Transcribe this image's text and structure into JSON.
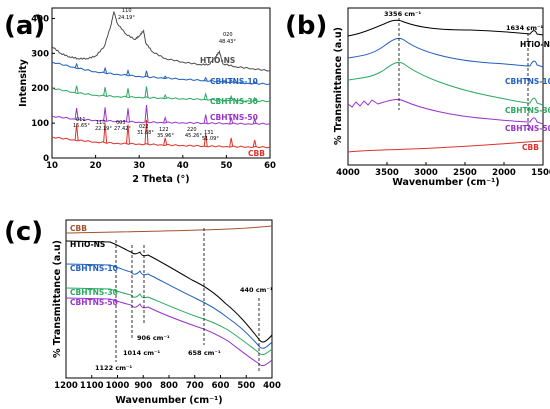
{
  "chart_data": [
    {
      "panel": "(a)",
      "type": "line",
      "xlabel": "2 Theta (°)",
      "ylabel": "Intensity",
      "xlim": [
        10,
        60
      ],
      "ylim": [
        0,
        430
      ],
      "xticks": [
        "10",
        "20",
        "30",
        "40",
        "50",
        "60"
      ],
      "yticks": [
        "0",
        "100",
        "200",
        "300",
        "400"
      ],
      "series": [
        {
          "name": "HTiO-NS",
          "color": "#4d4d4d",
          "x": [
            10,
            12,
            14,
            16,
            18,
            20,
            22,
            23.5,
            24.2,
            25,
            27,
            29,
            30,
            31,
            31.5,
            33,
            36,
            40,
            44,
            46,
            47.5,
            48.4,
            49.2,
            52,
            56,
            60
          ],
          "y": [
            320,
            300,
            290,
            285,
            285,
            292,
            320,
            380,
            420,
            385,
            355,
            340,
            350,
            365,
            330,
            305,
            285,
            275,
            268,
            268,
            290,
            305,
            270,
            262,
            256,
            250
          ]
        },
        {
          "name": "CBHTNS-10",
          "color": "#1f5fbf",
          "x": [
            10,
            15,
            20,
            25,
            30,
            35,
            40,
            45,
            50,
            55,
            60
          ],
          "y": [
            275,
            260,
            247,
            240,
            234,
            230,
            226,
            222,
            218,
            214,
            212
          ]
        },
        {
          "name": "CBHTNS-30",
          "color": "#2aa860",
          "x": [
            10,
            15,
            20,
            25,
            30,
            35,
            40,
            45,
            50,
            55,
            60
          ],
          "y": [
            200,
            188,
            180,
            176,
            174,
            172,
            170,
            168,
            166,
            164,
            163
          ]
        },
        {
          "name": "CBHTNS-50",
          "color": "#9933cc",
          "x": [
            10,
            15,
            20,
            25,
            30,
            35,
            40,
            45,
            50,
            55,
            60
          ],
          "y": [
            120,
            112,
            108,
            105,
            103,
            102,
            101,
            100,
            99,
            98,
            98
          ]
        },
        {
          "name": "CBB",
          "color": "#e0302a",
          "x": [
            10,
            15,
            20,
            25,
            30,
            35,
            40,
            45,
            50,
            55,
            60
          ],
          "y": [
            60,
            52,
            46,
            42,
            40,
            38,
            36,
            34,
            33,
            32,
            31
          ]
        }
      ],
      "cbb_peaks_x": [
        15.65,
        22.19,
        27.42,
        31.68,
        35.96,
        45.26,
        51.09,
        56.5
      ],
      "annotations": [
        {
          "label": "110",
          "value": "24.19°"
        },
        {
          "label": "020",
          "value": "48.43°"
        },
        {
          "label": "011",
          "value": "15.65°"
        },
        {
          "label": "110",
          "value": "22.19°"
        },
        {
          "label": "003",
          "value": "27.42°"
        },
        {
          "label": "022",
          "value": "31.68°"
        },
        {
          "label": "122",
          "value": "35.96°"
        },
        {
          "label": "220",
          "value": "45.26°"
        },
        {
          "label": "131",
          "value": "51.09°"
        }
      ]
    },
    {
      "panel": "(b)",
      "type": "line",
      "xlabel": "Wavenumber (cm⁻¹)",
      "ylabel": "% Transmittance (a.u)",
      "xlim": [
        4000,
        1500
      ],
      "x_reversed": true,
      "xticks": [
        "4000",
        "3500",
        "3000",
        "2500",
        "2000",
        "1500"
      ],
      "series": [
        {
          "name": "HTiO-NS",
          "color": "#000000"
        },
        {
          "name": "CBHTNS-10",
          "color": "#1f5fbf"
        },
        {
          "name": "CBHTNS-30",
          "color": "#2aa860"
        },
        {
          "name": "CBHTNS-50",
          "color": "#9933cc"
        },
        {
          "name": "CBB",
          "color": "#e0302a"
        }
      ],
      "annotations": [
        {
          "value": "3356 cm⁻¹"
        },
        {
          "value": "1634 cm⁻¹"
        }
      ]
    },
    {
      "panel": "(c)",
      "type": "line",
      "xlabel": "Wavenumber (cm⁻¹)",
      "ylabel": "% Transmittance (a.u)",
      "xlim": [
        1200,
        400
      ],
      "x_reversed": true,
      "xticks": [
        "1200",
        "1100",
        "1000",
        "900",
        "800",
        "700",
        "600",
        "500",
        "400"
      ],
      "series": [
        {
          "name": "CBB",
          "color": "#a0522d"
        },
        {
          "name": "HTiO-NS",
          "color": "#000000"
        },
        {
          "name": "CBHTNS-10",
          "color": "#1f5fbf"
        },
        {
          "name": "CBHTNS-30",
          "color": "#2aa860"
        },
        {
          "name": "CBHTNS-50",
          "color": "#9933cc"
        }
      ],
      "annotations": [
        {
          "value": "1122 cm⁻¹"
        },
        {
          "value": "1014 cm⁻¹"
        },
        {
          "value": "906 cm⁻¹"
        },
        {
          "value": "658 cm⁻¹"
        },
        {
          "value": "440 cm⁻¹"
        }
      ]
    }
  ]
}
